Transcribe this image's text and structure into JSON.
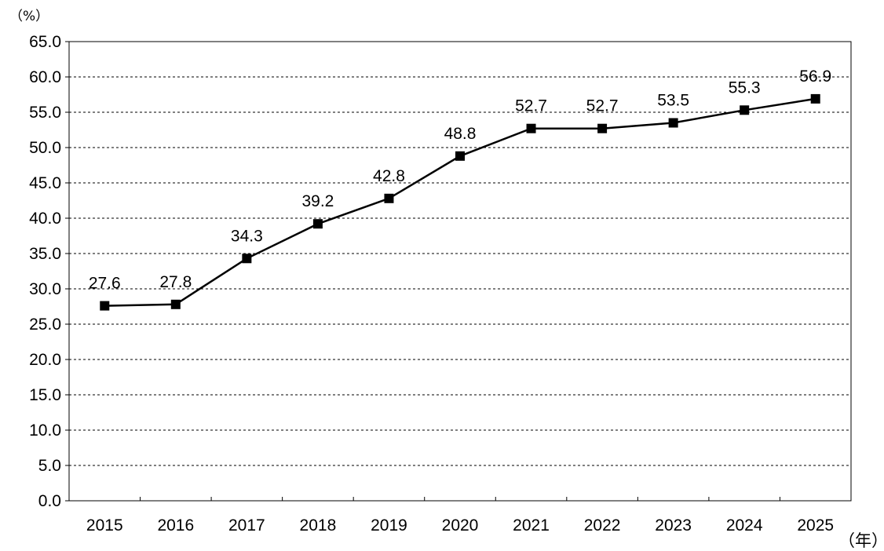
{
  "chart_data": {
    "type": "line",
    "title": "",
    "y_unit_label": "（%）",
    "x_unit_label": "（年）",
    "categories": [
      "2015",
      "2016",
      "2017",
      "2018",
      "2019",
      "2020",
      "2021",
      "2022",
      "2023",
      "2024",
      "2025"
    ],
    "series": [
      {
        "values": [
          27.6,
          27.8,
          34.3,
          39.2,
          42.8,
          48.8,
          52.7,
          52.7,
          53.5,
          55.3,
          56.9
        ],
        "labels": [
          "27.6",
          "27.8",
          "34.3",
          "39.2",
          "42.8",
          "48.8",
          "52.7",
          "52.7",
          "53.5",
          "55.3",
          "56.9"
        ],
        "color": "#000000",
        "marker": "square"
      }
    ],
    "yticks": [
      "0.0",
      "5.0",
      "10.0",
      "15.0",
      "20.0",
      "25.0",
      "30.0",
      "35.0",
      "40.0",
      "45.0",
      "50.0",
      "55.0",
      "60.0",
      "65.0"
    ],
    "ylim": [
      0,
      65
    ],
    "ystep": 5,
    "grid": "horizontal-dashed",
    "legend": "none"
  }
}
